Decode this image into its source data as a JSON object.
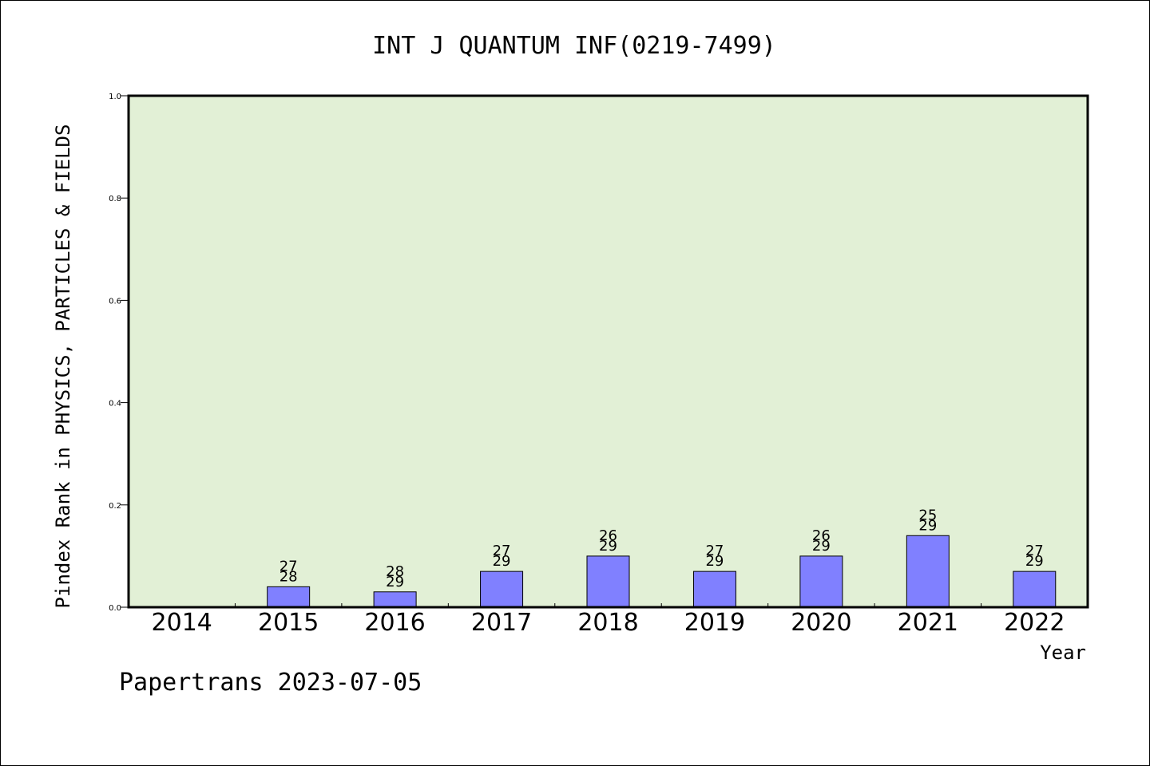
{
  "chart_data": {
    "type": "bar",
    "title": "INT J QUANTUM INF(0219-7499)",
    "xlabel": "Year",
    "ylabel": "Pindex Rank in PHYSICS, PARTICLES & FIELDS",
    "categories": [
      "2014",
      "2015",
      "2016",
      "2017",
      "2018",
      "2019",
      "2020",
      "2021",
      "2022"
    ],
    "values": [
      null,
      0.04,
      0.03,
      0.07,
      0.1,
      0.07,
      0.1,
      0.14,
      0.07
    ],
    "label_top": [
      "",
      "27",
      "28",
      "27",
      "26",
      "27",
      "26",
      "25",
      "27"
    ],
    "label_bottom": [
      "",
      "28",
      "29",
      "29",
      "29",
      "29",
      "29",
      "29",
      "29"
    ],
    "ylim": [
      0,
      1.0
    ],
    "yticks": [
      "0.0",
      "0.2",
      "0.4",
      "0.6",
      "0.8",
      "1.0"
    ],
    "grid": false,
    "colors": {
      "plot_background": "#e2f0d6",
      "bar_fill": "#8080ff",
      "bar_edge": "#000000"
    }
  },
  "footer": "Papertrans 2023-07-05"
}
